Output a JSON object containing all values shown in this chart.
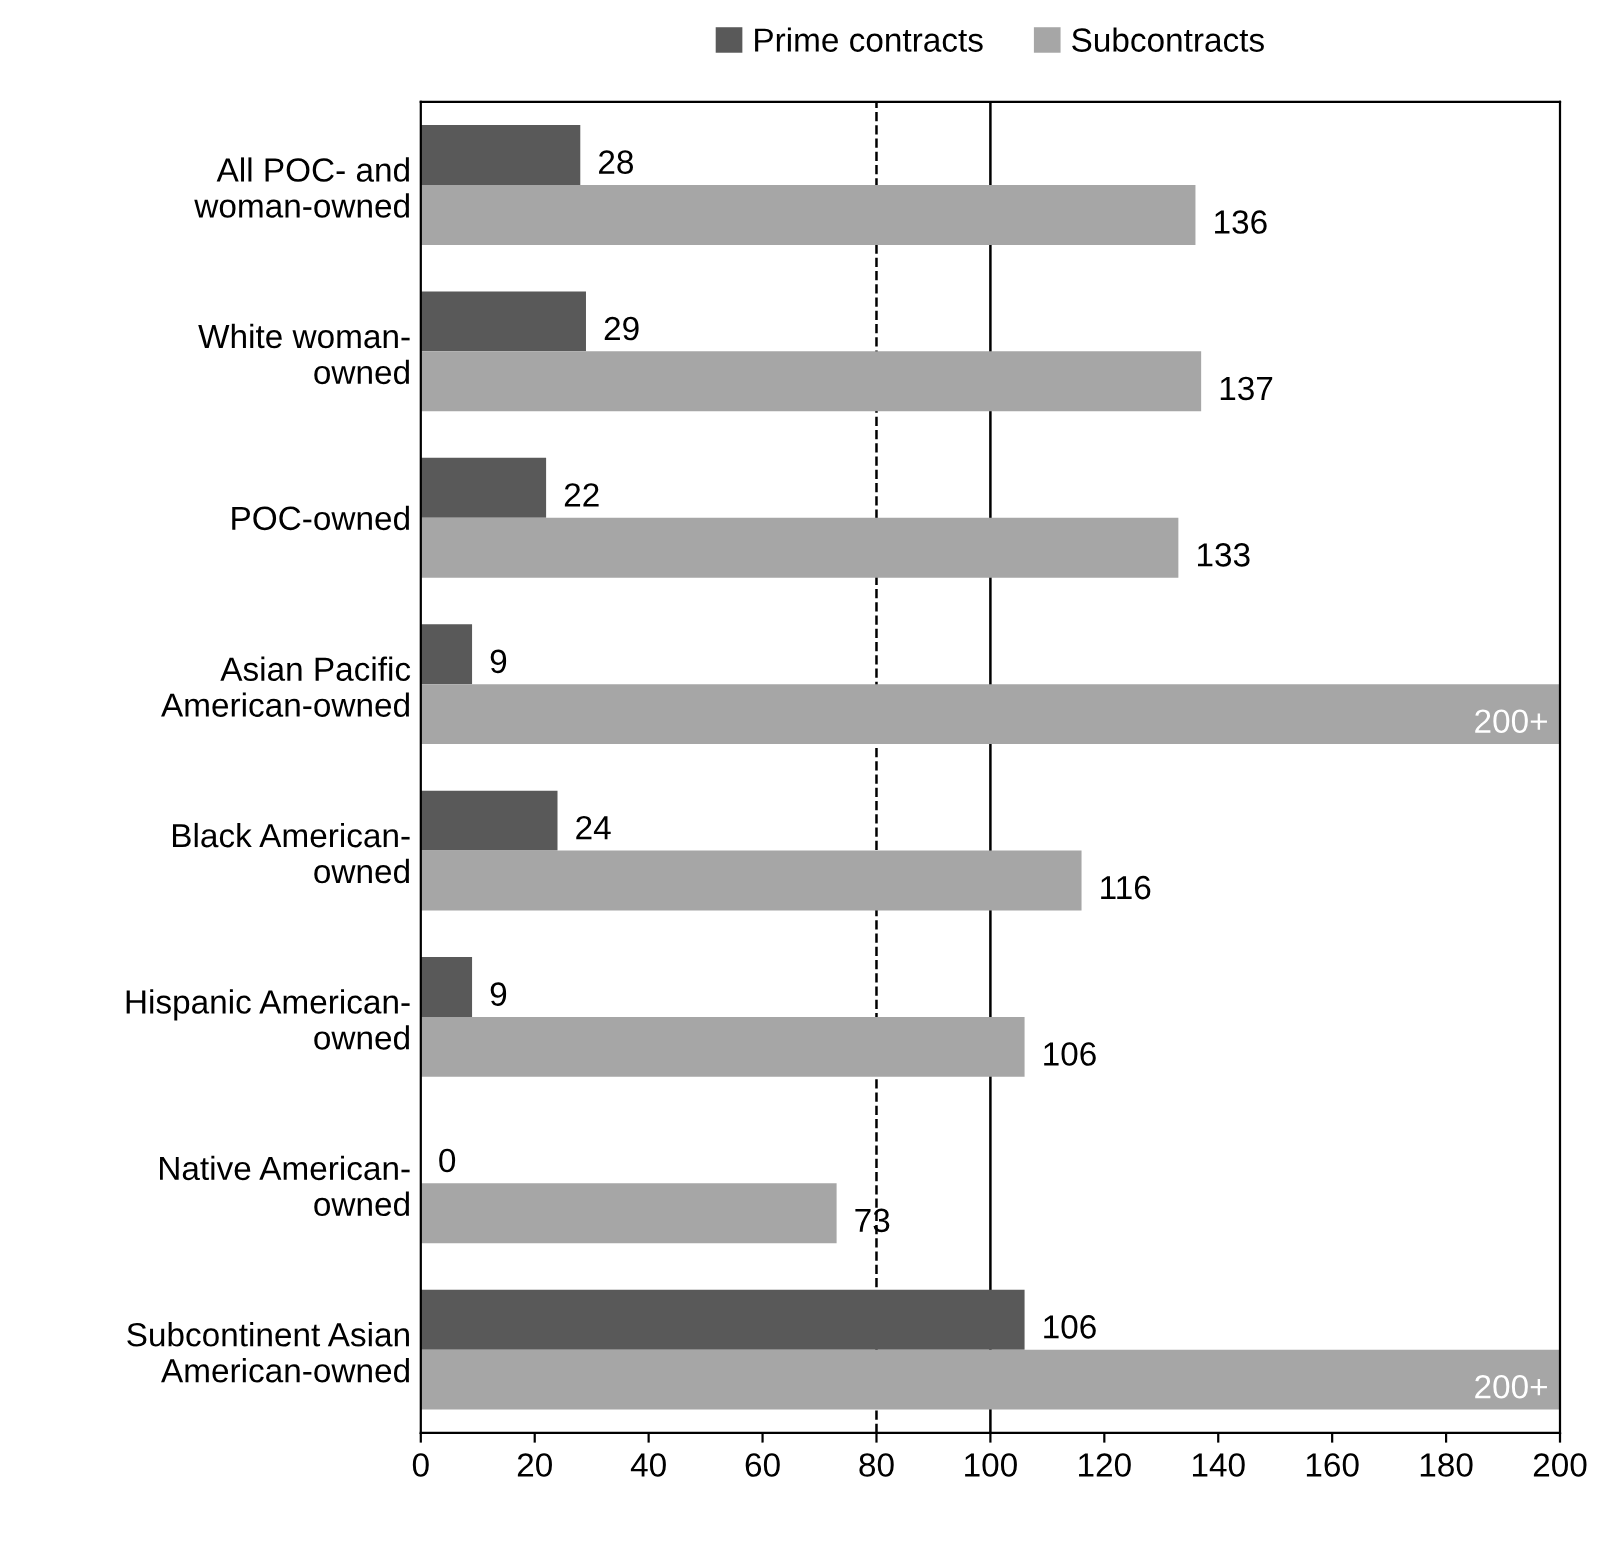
{
  "chart_data": {
    "type": "bar",
    "orientation": "horizontal",
    "categories": [
      "All POC- and\nwoman-owned",
      "White woman-\nowned",
      "POC-owned",
      "Asian Pacific\nAmerican-owned",
      "Black American-\nowned",
      "Hispanic American-\nowned",
      "Native American-\nowned",
      "Subcontinent Asian\nAmerican-owned"
    ],
    "series": [
      {
        "name": "Prime contracts",
        "color": "#595959",
        "values": [
          28,
          29,
          22,
          9,
          24,
          9,
          0,
          106
        ],
        "value_labels": [
          "28",
          "29",
          "22",
          "9",
          "24",
          "9",
          "0",
          "106"
        ]
      },
      {
        "name": "Subcontracts",
        "color": "#a6a6a6",
        "values": [
          136,
          137,
          133,
          200,
          116,
          106,
          73,
          200
        ],
        "value_labels": [
          "136",
          "137",
          "133",
          "200+",
          "116",
          "106",
          "73",
          "200+"
        ]
      }
    ],
    "xlim": [
      0,
      200
    ],
    "xticks": [
      0,
      20,
      40,
      60,
      80,
      100,
      120,
      140,
      160,
      180,
      200
    ],
    "grid": false,
    "legend": "top",
    "ref_lines": [
      {
        "axis": "x",
        "value": 80,
        "color": "#000000",
        "line_style": "dashed"
      },
      {
        "axis": "x",
        "value": 100,
        "color": "#000000",
        "line_style": "solid"
      }
    ]
  }
}
